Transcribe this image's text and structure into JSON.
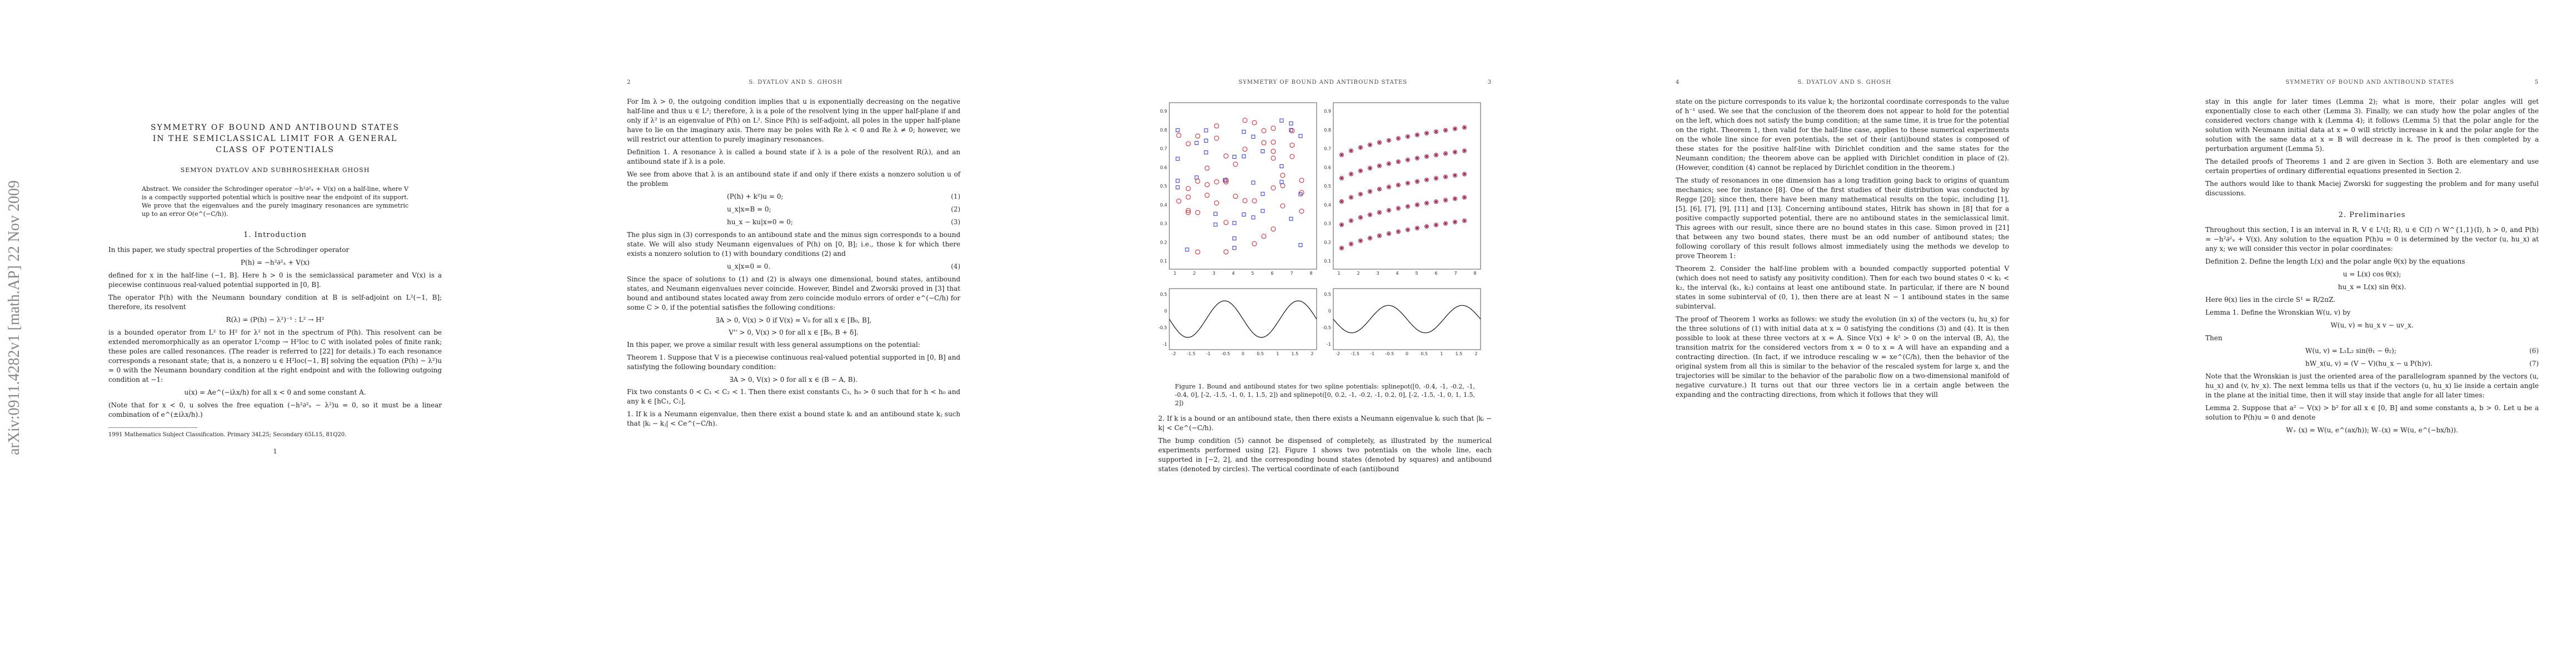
{
  "sidebar": {
    "arxiv_id": "arXiv:0911.4282v1 [math.AP] 22 Nov 2009"
  },
  "page1": {
    "title_line1": "SYMMETRY OF BOUND AND ANTIBOUND STATES",
    "title_line2": "IN THE SEMICLASSICAL LIMIT FOR A GENERAL",
    "title_line3": "CLASS OF POTENTIALS",
    "authors": "SEMYON DYATLOV AND SUBHROSHEKHAR GHOSH",
    "abstract": "Abstract. We consider the Schrodinger operator −h²∂²ₓ + V(x) on a half-line, where V is a compactly supported potential which is positive near the endpoint of its support. We prove that the eigenvalues and the purely imaginary resonances are symmetric up to an error O(e^(−C/h)).",
    "section1": "1. Introduction",
    "p1": "In this paper, we study spectral properties of the Schrodinger operator",
    "eq_P": "P(h) = −h²∂²ₓ + V(x)",
    "p2": "defined for x in the half-line (−1, B]. Here h > 0 is the semiclassical parameter and V(x) is a piecewise continuous real-valued potential supported in [0, B].",
    "p3": "The operator P(h) with the Neumann boundary condition at B is self-adjoint on L²(−1, B]; therefore, its resolvent",
    "eq_R": "R(λ) = (P(h) − λ²)⁻¹ : L² → H²",
    "p4": "is a bounded operator from L² to H² for λ² not in the spectrum of P(h). This resolvent can be extended meromorphically as an operator L²comp → H²loc to C with isolated poles of finite rank; these poles are called resonances. (The reader is referred to [22] for details.) To each resonance corresponds a resonant state; that is, a nonzero u ∈ H²loc(−1, B] solving the equation (P(h) − λ²)u = 0 with the Neumann boundary condition at the right endpoint and with the following outgoing condition at −1:",
    "eq_u": "u(x) = Ae^(−iλx/h) for all x < 0 and some constant A.",
    "p5": "(Note that for x < 0, u solves the free equation (−h²∂²ₓ − λ²)u = 0, so it must be a linear combination of e^(±iλx/h).)",
    "footnote": "1991 Mathematics Subject Classification. Primary 34L25; Secondary 65L15, 81Q20.",
    "page_number": "1"
  },
  "page2": {
    "running_num": "2",
    "running_head": "S. DYATLOV AND S. GHOSH",
    "p1": "For Im λ > 0, the outgoing condition implies that u is exponentially decreasing on the negative half-line and thus u ∈ L²; therefore, λ is a pole of the resolvent lying in the upper half-plane if and only if λ² is an eigenvalue of P(h) on L². Since P(h) is self-adjoint, all poles in the upper half-plane have to lie on the imaginary axis. There may be poles with Re λ < 0 and Re λ ≠ 0; however, we will restrict our attention to purely imaginary resonances.",
    "def1": "Definition 1. A resonance λ is called a bound state if λ is a pole of the resolvent R(λ), and an antibound state if λ is a pole.",
    "p2": "We see from above that λ is an antibound state if and only if there exists a nonzero solution u of the problem",
    "eq1": "(P(h) + k²)u = 0;",
    "eq2": "u_x|x=B = 0;",
    "eq3": "hu_x − ku|x=0 = 0;",
    "p3": "The plus sign in (3) corresponds to an antibound state and the minus sign corresponds to a bound state. We will also study Neumann eigenvalues of P(h) on [0, B]; i.e., those k for which there exists a nonzero solution to (1) with boundary conditions (2) and",
    "eq4": "u_x|x=0 = 0.",
    "p4": "Since the space of solutions to (1) and (2) is always one dimensional, bound states, antibound states, and Neumann eigenvalues never coincide. However, Bindel and Zworski proved in [3] that bound and antibound states located away from zero coincide modulo errors of order e^(−C/h) for some C > 0, if the potential satisfies the following conditions:",
    "cond1": "∃A > 0, V(x) > 0 if V(x) = V₀ for all x ∈ [B₀, B],",
    "cond2": "V'' > 0, V(x) > 0 for all x ∈ [B₀, B + δ].",
    "p5": "In this paper, we prove a similar result with less general assumptions on the potential:",
    "thm1": "Theorem 1. Suppose that V is a piecewise continuous real-valued potential supported in [0, B] and satisfying the following boundary condition:",
    "cond3": "∃A > 0, V(x) > 0 for all x ∈ (B − A, B).",
    "p6": "Fix two constants 0 < C₁ < C₂ < 1. Then there exist constants C₃, h₀ > 0 such that for h < h₀ and any k ∈ [hC₁, C₂],",
    "p7": "1. If k is a Neumann eigenvalue, then there exist a bound state kᵢ and an antibound state kⱼ such that |kᵢ − kⱼ| < Ce^(−C/h)."
  },
  "page3": {
    "running_head": "SYMMETRY OF BOUND AND ANTIBOUND STATES",
    "running_num": "3",
    "caption": "Figure 1. Bound and antibound states for two spline potentials: splinepot([0, -0.4, -1, -0.2, -1, -0.4, 0], [-2, -1.5, -1, 0, 1, 1.5, 2]) and splinepot([0, 0.2, -1, -0.2, -1, 0.2, 0], [-2, -1.5, -1, 0, 1, 1.5, 2])",
    "p1": "2. If k is a bound or an antibound state, then there exists a Neumann eigenvalue kᵢ such that |kᵢ − k| < Ce^(−C/h).",
    "p2": "The bump condition (5) cannot be dispensed of completely, as illustrated by the numerical experiments performed using [2]. Figure 1 shows two potentials on the whole line, each supported in [−2, 2], and the corresponding bound states (denoted by squares) and antibound states (denoted by circles). The vertical coordinate of each (anti)bound"
  },
  "page4": {
    "running_num": "4",
    "running_head": "S. DYATLOV AND S. GHOSH",
    "p1": "state on the picture corresponds to its value k; the horizontal coordinate corresponds to the value of h⁻¹ used. We see that the conclusion of the theorem does not appear to hold for the potential on the left, which does not satisfy the bump condition; at the same time, it is true for the potential on the right. Theorem 1, then valid for the half-line case, applies to these numerical experiments on the whole line since for even potentials, the set of their (anti)bound states is composed of these states for the positive half-line with Dirichlet condition and the same states for the Neumann condition; the theorem above can be applied with Dirichlet condition in place of (2). (However, condition (4) cannot be replaced by Dirichlet condition in the theorem.)",
    "p2": "The study of resonances in one dimension has a long tradition going back to origins of quantum mechanics; see for instance [8]. One of the first studies of their distribution was conducted by Regge [20]; since then, there have been many mathematical results on the topic, including [1], [5], [6], [7], [9], [11] and [13]. Concerning antibound states, Hitrik has shown in [8] that for a positive compactly supported potential, there are no antibound states in the semiclassical limit. This agrees with our result, since there are no bound states in this case. Simon proved in [21] that between any two bound states, there must be an odd number of antibound states; the following corollary of this result follows almost immediately using the methods we develop to prove Theorem 1:",
    "thm2": "Theorem 2. Consider the half-line problem with a bounded compactly supported potential V (which does not need to satisfy any positivity condition). Then for each two bound states 0 < k₁ < k₂, the interval (k₁, k₂) contains at least one antibound state. In particular, if there are N bound states in some subinterval of (0, 1), then there are at least N − 1 antibound states in the same subinterval.",
    "p3": "The proof of Theorem 1 works as follows: we study the evolution (in x) of the vectors (u, hu_x) for the three solutions of (1) with initial data at x = 0 satisfying the conditions (3) and (4). It is then possible to look at these three vectors at x = A. Since V(x) + k² > 0 on the interval (B, A), the transition matrix for the considered vectors from x = 0 to x = A will have an expanding and a contracting direction. (In fact, if we introduce rescaling w = xe^(C/h), then the behavior of the original system from all this is similar to the behavior of the rescaled system for large x, and the trajectories will be similar to the behavior of the parabolic flow on a two-dimensional manifold of negative curvature.) It turns out that our three vectors lie in a certain angle between the expanding and the contracting directions, from which it follows that they will"
  },
  "page5": {
    "running_head": "SYMMETRY OF BOUND AND ANTIBOUND STATES",
    "running_num": "5",
    "p1": "stay in this angle for later times (Lemma 2); what is more, their polar angles will get exponentially close to each other (Lemma 3). Finally, we can study how the polar angles of the considered vectors change with k (Lemma 4); it follows (Lemma 5) that the polar angle for the solution with Neumann initial data at x = 0 will strictly increase in k and the polar angle for the solution with the same data at x = B will decrease in k. The proof is then completed by a perturbation argument (Lemma 5).",
    "p2": "The detailed proofs of Theorems 1 and 2 are given in Section 3. Both are elementary and use certain properties of ordinary differential equations presented in Section 2.",
    "p3": "The authors would like to thank Maciej Zworski for suggesting the problem and for many useful discussions.",
    "section2": "2. Preliminaries",
    "p4": "Throughout this section, I is an interval in R, V ∈ L¹(I; R), u ∈ C(I) ∩ W^{1,1}(I), h > 0, and P(h) = −h²∂²ₓ + V(x). Any solution to the equation P(h)u = 0 is determined by the vector (u, hu_x) at any x; we will consider this vector in polar coordinates:",
    "def2": "Definition 2. Define the length L(x) and the polar angle θ(x) by the equations",
    "eq_polar1": "u = L(x) cos θ(x);",
    "eq_polar2": "hu_x = L(x) sin θ(x).",
    "p5": "Here θ(x) lies in the circle S¹ = R/2πZ.",
    "lemma1": "Lemma 1. Define the Wronskian W(u, v) by",
    "eq_W": "W(u, v) = hu_x v − uv_x.",
    "then": "Then",
    "eq6": "W(u, v) = L₁L₂ sin(θ₁ − θ₂);",
    "eq7": "hW_x(u, v) = (V − V)(hu_x − u P(h)v).",
    "p6": "Note that the Wronskian is just the oriented area of the parallelogram spanned by the vectors (u, hu_x) and (v, hv_x). The next lemma tells us that if the vectors (u, hu_x) lie inside a certain angle in the plane at the initial time, then it will stay inside that angle for all later times:",
    "lemma2": "Lemma 2. Suppose that a² − V(x) > b² for all x ∈ [0, B] and some constants a, b > 0. Let u be a solution to P(h)u = 0 and denote",
    "eq_Wab": "W₊ (x) = W(u, e^(ax/h)); W₋(x) = W(u, e^(−bx/h))."
  },
  "figure": {
    "left_y_ticks": [
      "0.9",
      "0.8",
      "0.7",
      "0.6",
      "0.5",
      "0.4",
      "0.3",
      "0.2",
      "0.1"
    ],
    "right_y_ticks": [
      "0.9",
      "0.8",
      "0.7",
      "0.6",
      "0.5",
      "0.4",
      "0.3",
      "0.2",
      "0.1"
    ],
    "x_ticks": [
      "1",
      "2",
      "3",
      "4",
      "5",
      "6",
      "7",
      "8"
    ],
    "bottom_y_ticks": [
      "0.5",
      "0",
      "-0.5",
      "-1"
    ],
    "bottom_x_ticks": [
      "-2",
      "-1.5",
      "-1",
      "-0.5",
      "0",
      "0.5",
      "1",
      "1.5",
      "2"
    ],
    "square_color": "#2a35c8",
    "circle_color": "#c8202a",
    "right_point_color": "#a02050"
  }
}
